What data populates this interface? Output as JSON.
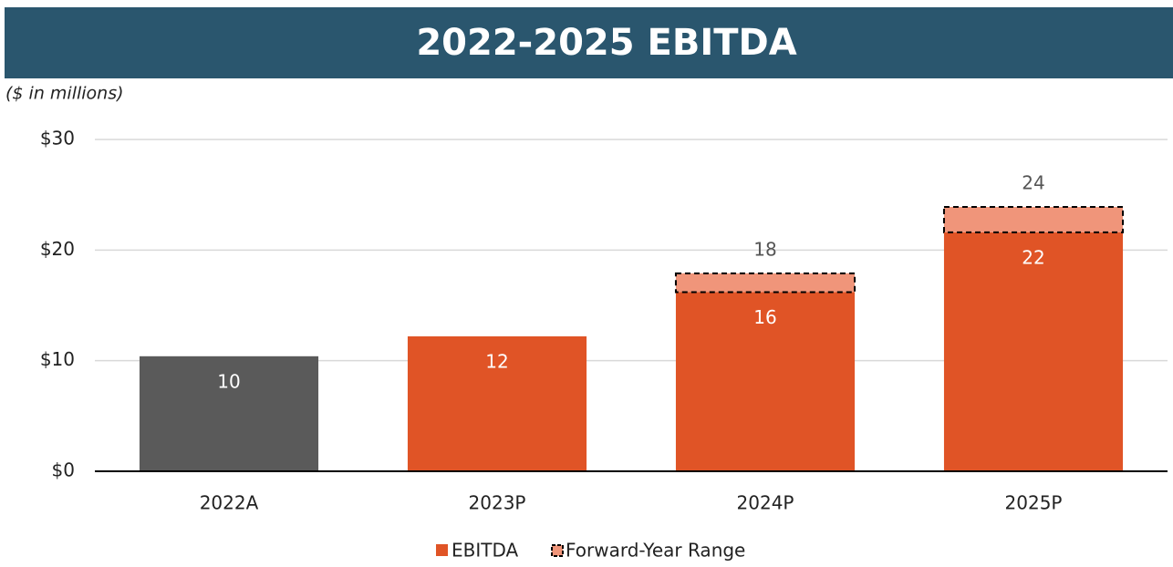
{
  "chart_data": {
    "type": "bar",
    "title": "2022-2025 EBITDA",
    "subtitle": "($ in millions)",
    "categories": [
      "2022A",
      "2023P",
      "2024P",
      "2025P"
    ],
    "series": [
      {
        "name": "EBITDA",
        "color": "#e05426",
        "colors": [
          "#5a5a5a",
          "#e05426",
          "#e05426",
          "#e05426"
        ],
        "values": [
          10.4,
          12.2,
          16.2,
          21.6
        ],
        "value_labels": [
          "10",
          "12",
          "16",
          "22"
        ]
      },
      {
        "name": "Forward-Year Range",
        "color": "#f0957a",
        "type": "range",
        "values": [
          null,
          null,
          17.9,
          23.9
        ],
        "value_labels": [
          null,
          null,
          "18",
          "24"
        ]
      }
    ],
    "ylim": [
      0,
      30
    ],
    "yticks": [
      {
        "value": 0,
        "label": "$0"
      },
      {
        "value": 10,
        "label": "$10"
      },
      {
        "value": 20,
        "label": "$20"
      },
      {
        "value": 30,
        "label": "$30"
      }
    ],
    "grid": true,
    "legend": "bottom"
  }
}
